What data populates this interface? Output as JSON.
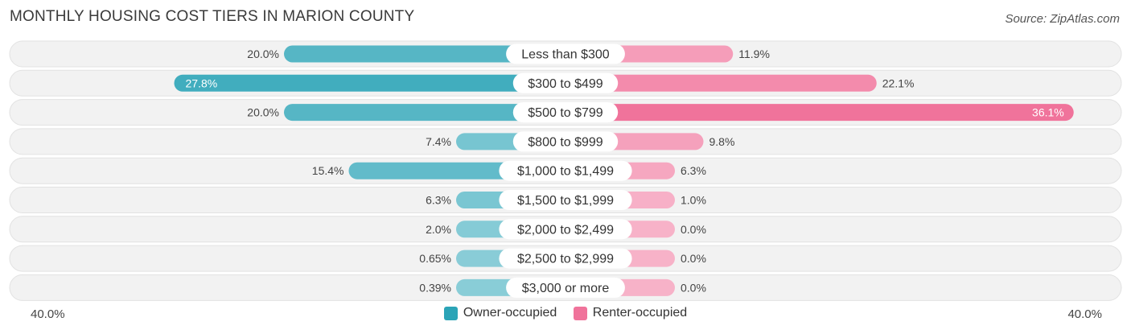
{
  "chart_data": {
    "type": "bar",
    "orientation": "diverging-horizontal",
    "title": "MONTHLY HOUSING COST TIERS IN MARION COUNTY",
    "source": "Source: ZipAtlas.com",
    "categories": [
      "Less than $300",
      "$300 to $499",
      "$500 to $799",
      "$800 to $999",
      "$1,000 to $1,499",
      "$1,500 to $1,999",
      "$2,000 to $2,499",
      "$2,500 to $2,999",
      "$3,000 or more"
    ],
    "series": [
      {
        "name": "Owner-occupied",
        "color": "#2ba4b7",
        "values": [
          20.0,
          27.8,
          20.0,
          7.4,
          15.4,
          6.3,
          2.0,
          0.65,
          0.39
        ],
        "labels": [
          "20.0%",
          "27.8%",
          "20.0%",
          "7.4%",
          "15.4%",
          "6.3%",
          "2.0%",
          "0.65%",
          "0.39%"
        ]
      },
      {
        "name": "Renter-occupied",
        "color": "#f0739b",
        "values": [
          11.9,
          22.1,
          36.1,
          9.8,
          6.3,
          1.0,
          0.0,
          0.0,
          0.0
        ],
        "labels": [
          "11.9%",
          "22.1%",
          "36.1%",
          "9.8%",
          "6.3%",
          "1.0%",
          "0.0%",
          "0.0%",
          "0.0%"
        ]
      }
    ],
    "axis_max": 40.0,
    "axis_left_label": "40.0%",
    "axis_right_label": "40.0%",
    "legend_position": "bottom-center"
  }
}
